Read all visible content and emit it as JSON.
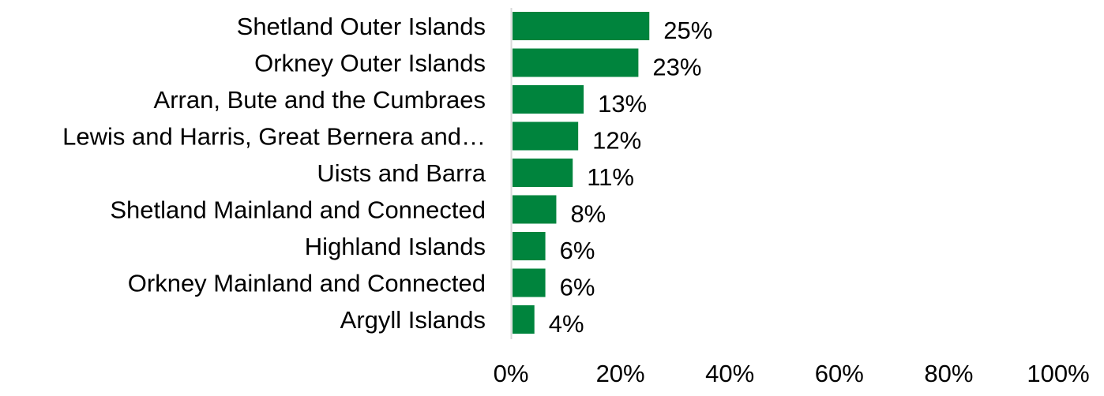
{
  "chart_data": {
    "type": "bar",
    "orientation": "horizontal",
    "categories": [
      "Shetland Outer Islands",
      "Orkney Outer Islands",
      "Arran, Bute and the Cumbraes",
      "Lewis and Harris, Great Bernera and…",
      "Uists and Barra",
      "Shetland Mainland and Connected",
      "Highland Islands",
      "Orkney Mainland and Connected",
      "Argyll Islands"
    ],
    "values": [
      25,
      23,
      13,
      12,
      11,
      8,
      6,
      6,
      4
    ],
    "data_labels": [
      "25%",
      "23%",
      "13%",
      "12%",
      "11%",
      "8%",
      "6%",
      "6%",
      "4%"
    ],
    "xlim": [
      0,
      100
    ],
    "x_ticks": [
      "0%",
      "20%",
      "40%",
      "60%",
      "80%",
      "100%"
    ],
    "title": "",
    "xlabel": "",
    "ylabel": "",
    "grid": false,
    "bar_color": "#00843D",
    "axis_color": "#D9D9D9"
  }
}
